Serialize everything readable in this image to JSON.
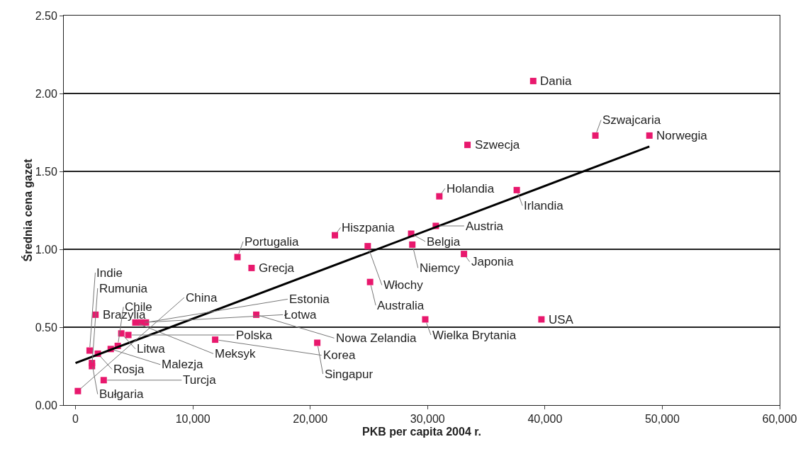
{
  "chart_data": {
    "type": "scatter",
    "xlabel": "PKB per capita 2004 r.",
    "ylabel": "Średnia cena gazet",
    "xlim": [
      -1000,
      60000
    ],
    "xticks": [
      {
        "value": 0,
        "label": "0"
      },
      {
        "value": 10000,
        "label": "10,000"
      },
      {
        "value": 20000,
        "label": "20,000"
      },
      {
        "value": 30000,
        "label": "30,000"
      },
      {
        "value": 40000,
        "label": "40,000"
      },
      {
        "value": 50000,
        "label": "50,000"
      },
      {
        "value": 60000,
        "label": "60,000"
      }
    ],
    "ylim": [
      0,
      2.5
    ],
    "yticks": [
      {
        "value": 0,
        "label": "0.00"
      },
      {
        "value": 0.5,
        "label": "0.50"
      },
      {
        "value": 1,
        "label": "1.00"
      },
      {
        "value": 1.5,
        "label": "1.50"
      },
      {
        "value": 2,
        "label": "2.00"
      },
      {
        "value": 2.5,
        "label": "2.50"
      }
    ],
    "grid": "y",
    "marker": "square",
    "series": [
      {
        "color": "#e8186d",
        "x": [
          39000,
          44300,
          48900,
          33400,
          31000,
          37600,
          30700,
          28600,
          22100,
          24900,
          28700,
          33100,
          13800,
          15000,
          25100,
          15400,
          29800,
          39700,
          11900,
          20600,
          1700,
          5100,
          5600,
          6000,
          3900,
          4500,
          1200,
          1900,
          3000,
          3600,
          1400,
          1400,
          2400,
          200
        ],
        "values": [
          2.08,
          1.73,
          1.73,
          1.67,
          1.34,
          1.38,
          1.15,
          1.1,
          1.09,
          1.02,
          1.03,
          0.97,
          0.95,
          0.88,
          0.79,
          0.58,
          0.55,
          0.55,
          0.42,
          0.4,
          0.58,
          0.53,
          0.53,
          0.53,
          0.46,
          0.45,
          0.35,
          0.33,
          0.36,
          0.38,
          0.27,
          0.25,
          0.16,
          0.09
        ],
        "value_labels": [
          "Dania",
          "Szwajcaria",
          "Norwegia",
          "Szwecja",
          "Holandia",
          "Irlandia",
          "Austria",
          "Belgia",
          "Hiszpania",
          "Włochy",
          "Niemcy",
          "Japonia",
          "Portugalia",
          "Grecja",
          "Australia",
          "Nowa Zelandia",
          "Wielka Brytania",
          "USA",
          "Korea",
          "Singapur",
          "Brazylia",
          "Meksyk",
          "Łotwa",
          "Estonia",
          "Litwa",
          "Polska",
          "Indie",
          "Rosja",
          "Malezja",
          "Chile",
          "Bułgaria",
          "Rumunia",
          "Turcja",
          "China"
        ]
      },
      {
        "type": "line",
        "marker": "none",
        "color": "#000000",
        "x": [
          0,
          48900
        ],
        "values": [
          0.27,
          1.66
        ]
      }
    ]
  }
}
